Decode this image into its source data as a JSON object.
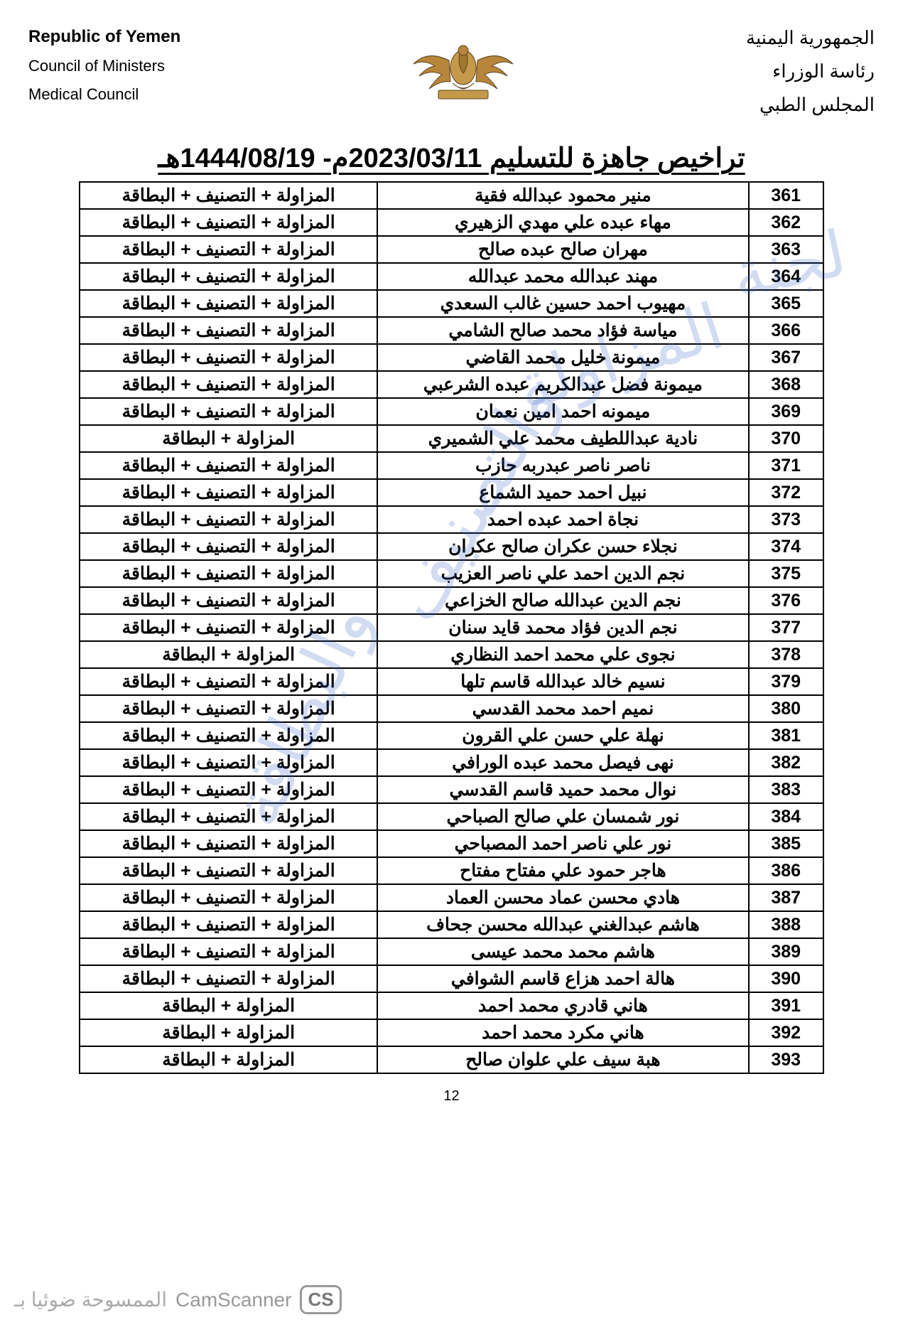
{
  "header": {
    "left": {
      "line1": "Republic of Yemen",
      "line2": "Council of Ministers",
      "line3": "Medical Council"
    },
    "right": {
      "line1": "الجمهورية اليمنية",
      "line2": "رئاسة الوزراء",
      "line3": "المجلس الطبي"
    }
  },
  "title": "تراخيص جاهزة للتسليم 2023/03/11م- 1444/08/19هـ",
  "docs_full": "المزاولة + التصنيف + البطاقة",
  "docs_short": "المزاولة + البطاقة",
  "table": {
    "rows": [
      {
        "n": "361",
        "name": "منير محمود عبدالله فقية",
        "d": "full"
      },
      {
        "n": "362",
        "name": "مهاء عبده علي مهدي الزهيري",
        "d": "full"
      },
      {
        "n": "363",
        "name": "مهران صالح عبده صالح",
        "d": "full"
      },
      {
        "n": "364",
        "name": "مهند عبدالله محمد عبدالله",
        "d": "full"
      },
      {
        "n": "365",
        "name": "مهيوب احمد حسين غالب السعدي",
        "d": "full"
      },
      {
        "n": "366",
        "name": "مياسة فؤاد محمد صالح الشامي",
        "d": "full"
      },
      {
        "n": "367",
        "name": "ميمونة خليل محمد القاضي",
        "d": "full"
      },
      {
        "n": "368",
        "name": "ميمونة فضل عبدالكريم عبده الشرعبي",
        "d": "full"
      },
      {
        "n": "369",
        "name": "ميمونه احمد امين نعمان",
        "d": "full"
      },
      {
        "n": "370",
        "name": "نادية عبداللطيف محمد علي الشميري",
        "d": "short"
      },
      {
        "n": "371",
        "name": "ناصر ناصر عبدربه حازب",
        "d": "full"
      },
      {
        "n": "372",
        "name": "نبيل احمد حميد الشماع",
        "d": "full"
      },
      {
        "n": "373",
        "name": "نجاة احمد عبده احمد",
        "d": "full"
      },
      {
        "n": "374",
        "name": "نجلاء حسن عكران صالح عكران",
        "d": "full"
      },
      {
        "n": "375",
        "name": "نجم الدين احمد علي ناصر العزيب",
        "d": "full"
      },
      {
        "n": "376",
        "name": "نجم الدين عبدالله صالح الخزاعي",
        "d": "full"
      },
      {
        "n": "377",
        "name": "نجم الدين فؤاد محمد قايد سنان",
        "d": "full"
      },
      {
        "n": "378",
        "name": "نجوى علي محمد احمد النظاري",
        "d": "short"
      },
      {
        "n": "379",
        "name": "نسيم خالد عبدالله قاسم تلها",
        "d": "full"
      },
      {
        "n": "380",
        "name": "نميم احمد محمد القدسي",
        "d": "full"
      },
      {
        "n": "381",
        "name": "نهلة علي حسن علي القرون",
        "d": "full"
      },
      {
        "n": "382",
        "name": "نهى فيصل محمد عبده الورافي",
        "d": "full"
      },
      {
        "n": "383",
        "name": "نوال محمد حميد قاسم القدسي",
        "d": "full"
      },
      {
        "n": "384",
        "name": "نور شمسان علي صالح الصباحي",
        "d": "full"
      },
      {
        "n": "385",
        "name": "نور علي ناصر احمد المصباحي",
        "d": "full"
      },
      {
        "n": "386",
        "name": "هاجر حمود علي مفتاح مفتاح",
        "d": "full"
      },
      {
        "n": "387",
        "name": "هادي محسن عماد محسن العماد",
        "d": "full"
      },
      {
        "n": "388",
        "name": "هاشم عبدالغني عبدالله محسن جحاف",
        "d": "full"
      },
      {
        "n": "389",
        "name": "هاشم محمد محمد عيسى",
        "d": "full"
      },
      {
        "n": "390",
        "name": "هالة احمد هزاع قاسم الشوافي",
        "d": "full"
      },
      {
        "n": "391",
        "name": "هاني قادري محمد احمد",
        "d": "short"
      },
      {
        "n": "392",
        "name": "هاني مكرد محمد احمد",
        "d": "short"
      },
      {
        "n": "393",
        "name": "هبة سيف علي علوان صالح",
        "d": "short"
      }
    ]
  },
  "page_number": "12",
  "footer": {
    "cs": "CS",
    "camscanner": "CamScanner",
    "ar": "الممسوحة ضوئيا بـ"
  },
  "watermarks": {
    "w1": "لجنة",
    "w2": "المزاولة",
    "w3": "والتصنيف",
    "w4": "والبطاقة"
  }
}
